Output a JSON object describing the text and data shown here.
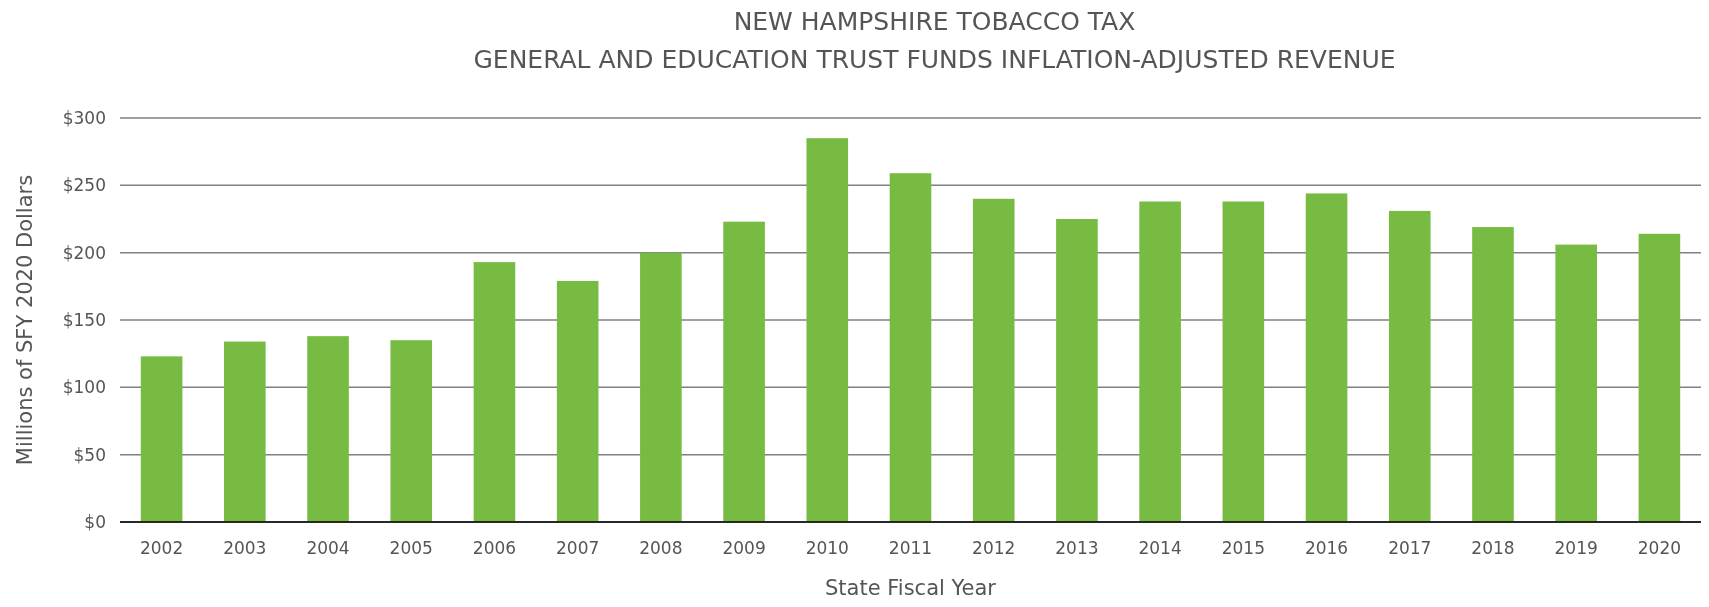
{
  "chart_data": {
    "type": "bar",
    "title": "NEW HAMPSHIRE TOBACCO TAX",
    "subtitle": "GENERAL AND EDUCATION TRUST FUNDS INFLATION-ADJUSTED REVENUE",
    "xlabel": "State Fiscal Year",
    "ylabel": "Millions of SFY 2020 Dollars",
    "categories": [
      "2002",
      "2003",
      "2004",
      "2005",
      "2006",
      "2007",
      "2008",
      "2009",
      "2010",
      "2011",
      "2012",
      "2013",
      "2014",
      "2015",
      "2016",
      "2017",
      "2018",
      "2019",
      "2020"
    ],
    "values": [
      123,
      134,
      138,
      135,
      193,
      179,
      200,
      223,
      285,
      259,
      240,
      225,
      238,
      238,
      244,
      231,
      219,
      206,
      214
    ],
    "color": "#77bb43",
    "ylim": [
      0,
      300
    ],
    "yticks": [
      {
        "value": 0,
        "label": "$0"
      },
      {
        "value": 50,
        "label": "$50"
      },
      {
        "value": 100,
        "label": "$100"
      },
      {
        "value": 150,
        "label": "$150"
      },
      {
        "value": 200,
        "label": "$200"
      },
      {
        "value": 250,
        "label": "$250"
      },
      {
        "value": 300,
        "label": "$300"
      }
    ],
    "grid": "y"
  }
}
